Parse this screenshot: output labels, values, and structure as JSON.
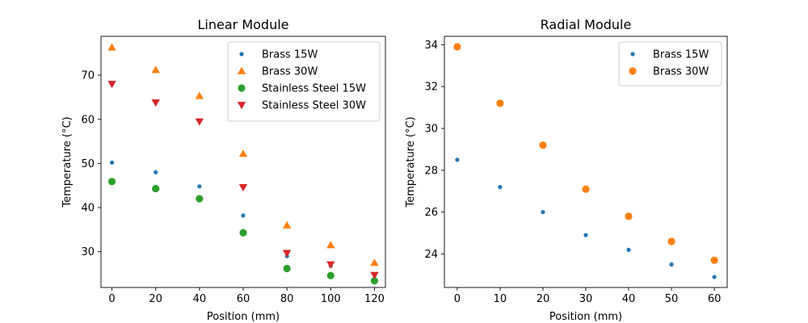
{
  "chart_data": [
    {
      "type": "scatter",
      "title": "Linear Module",
      "xlabel": "Position (mm)",
      "ylabel": "Temperature (°C)",
      "xlim": [
        -5,
        125
      ],
      "ylim": [
        21.9,
        78.8
      ],
      "xticks": [
        0,
        20,
        40,
        60,
        80,
        100,
        120
      ],
      "yticks": [
        30,
        40,
        50,
        60,
        70
      ],
      "legend": "top-right",
      "grid": false,
      "series": [
        {
          "name": "Brass 15W",
          "marker": "dot",
          "color": "#1f77b4",
          "x": [
            0,
            20,
            40,
            60,
            80,
            100,
            120
          ],
          "y": [
            50.2,
            48.0,
            44.8,
            38.2,
            29.0,
            26.8,
            23.8
          ]
        },
        {
          "name": "Brass 30W",
          "marker": "triangle-up",
          "color": "#ff7f0e",
          "x": [
            0,
            20,
            40,
            60,
            80,
            100,
            120
          ],
          "y": [
            76.3,
            71.2,
            65.3,
            52.2,
            36.0,
            31.5,
            27.5
          ]
        },
        {
          "name": "Stainless Steel 15W",
          "marker": "circle",
          "color": "#2ca02c",
          "x": [
            0,
            20,
            40,
            60,
            80,
            100,
            120
          ],
          "y": [
            45.9,
            44.3,
            42.0,
            34.3,
            26.2,
            24.6,
            23.4
          ]
        },
        {
          "name": "Stainless Steel 30W",
          "marker": "triangle-down",
          "color": "#d62728",
          "x": [
            0,
            20,
            40,
            60,
            80,
            100,
            120
          ],
          "y": [
            68.0,
            63.8,
            59.5,
            44.6,
            29.7,
            27.1,
            24.7
          ]
        }
      ]
    },
    {
      "type": "scatter",
      "title": "Radial Module",
      "xlabel": "Position (mm)",
      "ylabel": "Temperature (°C)",
      "xlim": [
        -3,
        63
      ],
      "ylim": [
        22.4,
        34.4
      ],
      "xticks": [
        0,
        10,
        20,
        30,
        40,
        50,
        60
      ],
      "yticks": [
        24,
        26,
        28,
        30,
        32,
        34
      ],
      "legend": "top-right",
      "grid": false,
      "series": [
        {
          "name": "Brass 15W",
          "marker": "dot",
          "color": "#1f77b4",
          "x": [
            0,
            10,
            20,
            30,
            40,
            50,
            60
          ],
          "y": [
            28.5,
            27.2,
            26.0,
            24.9,
            24.2,
            23.5,
            22.9
          ]
        },
        {
          "name": "Brass 30W",
          "marker": "circle",
          "color": "#ff7f0e",
          "x": [
            0,
            10,
            20,
            30,
            40,
            50,
            60
          ],
          "y": [
            33.9,
            31.2,
            29.2,
            27.1,
            25.8,
            24.6,
            23.7
          ]
        }
      ]
    }
  ]
}
